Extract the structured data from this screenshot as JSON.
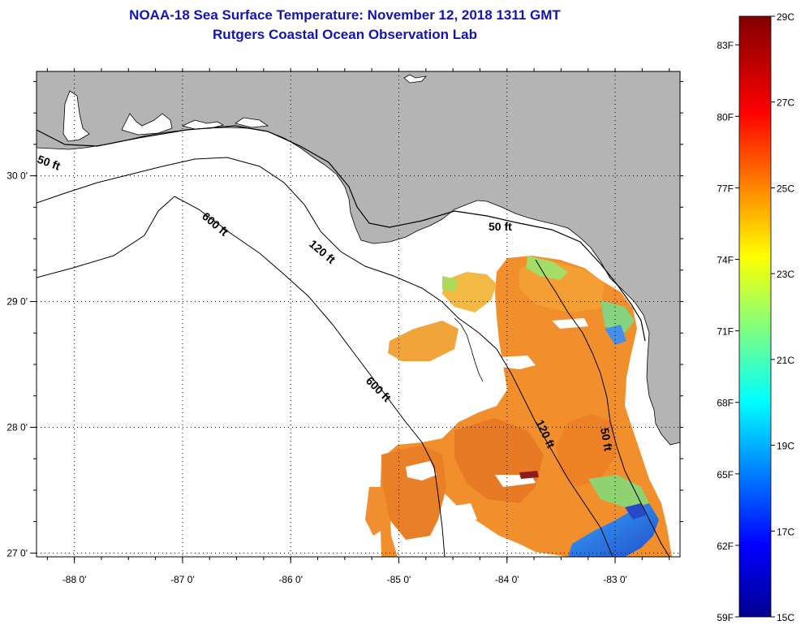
{
  "header": {
    "title": "NOAA-18 Sea Surface Temperature:  November 12, 2018 1311 GMT",
    "subtitle": "Rutgers Coastal Ocean Observation Lab"
  },
  "map": {
    "lon_range": [
      -88.35,
      -82.4
    ],
    "lat_range": [
      26.97,
      30.83
    ],
    "lon_ticks": [
      {
        "value": -88,
        "label": "-88 0'"
      },
      {
        "value": -87,
        "label": "-87 0'"
      },
      {
        "value": -86,
        "label": "-86 0'"
      },
      {
        "value": -85,
        "label": "-85 0'"
      },
      {
        "value": -84,
        "label": "-84 0'"
      },
      {
        "value": -83,
        "label": "-83 0'"
      }
    ],
    "lat_ticks": [
      {
        "value": 30,
        "label": "30 0'"
      },
      {
        "value": 29,
        "label": "29 0'"
      },
      {
        "value": 28,
        "label": "28 0'"
      },
      {
        "value": 27,
        "label": "27 0'"
      }
    ],
    "contours": [
      {
        "label": "50 ft"
      },
      {
        "label": "50 ft"
      },
      {
        "label": "50 ft"
      },
      {
        "label": "120 ft"
      },
      {
        "label": "120 ft"
      },
      {
        "label": "600 ft"
      },
      {
        "label": "600 ft"
      }
    ]
  },
  "colorbar": {
    "min_c": 15,
    "max_c": 29,
    "fahrenheit_labels": [
      "83F",
      "80F",
      "77F",
      "74F",
      "71F",
      "68F",
      "65F",
      "62F",
      "59F"
    ],
    "celsius_labels": [
      "29C",
      "27C",
      "25C",
      "23C",
      "21C",
      "19C",
      "17C",
      "15C"
    ]
  },
  "colors": {
    "title": "#1414b4",
    "land": "#b4b4b4",
    "sst_warm": "#f07a1e",
    "sst_cool": "#2f7ae0"
  }
}
